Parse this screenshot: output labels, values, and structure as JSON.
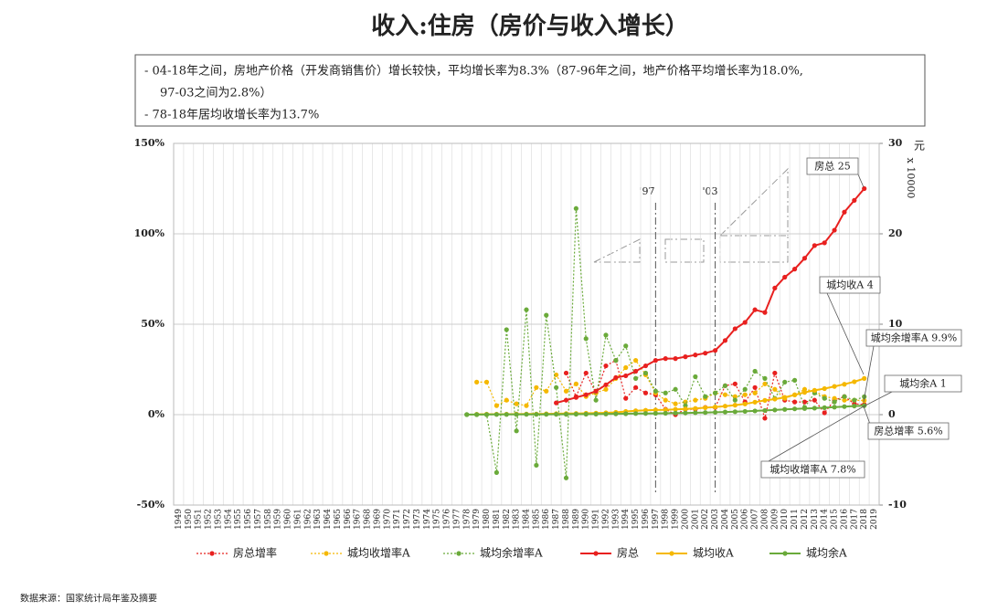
{
  "chart_data": {
    "type": "line",
    "title": "收入:住房（房价与收入增长）",
    "notes": [
      "-  04-18年之间，房地产价格（开发商销售价）增长较快，平均增长率为8.3%（87-96年之间，地产价格平均增长率为18.0%,",
      "97-03之间为2.8%）",
      "- 78-18年居均收增长率为13.7%"
    ],
    "y2_unit": "元",
    "y2_multiplier": "x 10000",
    "source": "数据来源：国家统计局年鉴及摘要",
    "markers": [
      "'97",
      "'03"
    ],
    "annotations": [
      "房总 25",
      "城均收A 4",
      "城均余增率A 9.9%",
      "城均余A 1",
      "房总增率 5.6%",
      "城均收增率A 7.8%"
    ],
    "categories": [
      "1949",
      "1950",
      "1951",
      "1952",
      "1953",
      "1954",
      "1955",
      "1956",
      "1957",
      "1958",
      "1959",
      "1960",
      "1961",
      "1962",
      "1963",
      "1964",
      "1965",
      "1966",
      "1967",
      "1968",
      "1969",
      "1970",
      "1971",
      "1972",
      "1973",
      "1974",
      "1975",
      "1976",
      "1977",
      "1978",
      "1979",
      "1980",
      "1981",
      "1982",
      "1983",
      "1984",
      "1985",
      "1986",
      "1987",
      "1988",
      "1989",
      "1990",
      "1991",
      "1992",
      "1993",
      "1994",
      "1995",
      "1996",
      "1997",
      "1998",
      "1999",
      "2000",
      "2001",
      "2002",
      "2003",
      "2004",
      "2005",
      "2006",
      "2007",
      "2008",
      "2009",
      "2010",
      "2011",
      "2012",
      "2013",
      "2014",
      "2015",
      "2016",
      "2017",
      "2018",
      "2019"
    ],
    "ylim": [
      -50,
      150
    ],
    "yticks": [
      {
        "value": -50,
        "label": "-50%"
      },
      {
        "value": 0,
        "label": "0%"
      },
      {
        "value": 50,
        "label": "50%"
      },
      {
        "value": 100,
        "label": "100%"
      },
      {
        "value": 150,
        "label": "150%"
      }
    ],
    "y2lim": [
      -10,
      30
    ],
    "y2ticks": [
      -10,
      0,
      10,
      20,
      30
    ],
    "grid": true,
    "legend": "bottom",
    "series": [
      {
        "name": "房总增率",
        "color": "#e8201f",
        "style": "dotted",
        "axis": "y",
        "values": [
          null,
          null,
          null,
          null,
          null,
          null,
          null,
          null,
          null,
          null,
          null,
          null,
          null,
          null,
          null,
          null,
          null,
          null,
          null,
          null,
          null,
          null,
          null,
          null,
          null,
          null,
          null,
          null,
          null,
          null,
          null,
          null,
          null,
          null,
          null,
          null,
          null,
          null,
          null,
          23,
          10,
          23,
          12,
          27,
          30,
          9,
          15,
          12,
          11,
          3,
          0,
          3,
          3,
          4,
          4,
          16,
          17,
          7,
          15,
          -2,
          23,
          8,
          7,
          7,
          8,
          1,
          8,
          10,
          6,
          5.6,
          null
        ]
      },
      {
        "name": "城均收增率A",
        "color": "#f5b800",
        "style": "dotted",
        "axis": "y",
        "values": [
          null,
          null,
          null,
          null,
          null,
          null,
          null,
          null,
          null,
          null,
          null,
          null,
          null,
          null,
          null,
          null,
          null,
          null,
          null,
          null,
          null,
          null,
          null,
          null,
          null,
          null,
          null,
          null,
          null,
          null,
          18,
          18,
          5,
          8,
          6,
          5,
          15,
          13,
          22,
          13,
          17,
          10,
          12,
          14,
          20,
          26,
          30,
          22,
          12,
          8,
          6,
          7,
          8,
          9,
          12,
          11,
          10,
          11,
          12,
          17,
          14,
          9,
          11,
          14,
          13,
          10,
          9,
          8,
          8,
          7.8,
          null
        ]
      },
      {
        "name": "城均余增率A",
        "color": "#6aaa3a",
        "style": "dotted",
        "axis": "y",
        "values": [
          null,
          null,
          null,
          null,
          null,
          null,
          null,
          null,
          null,
          null,
          null,
          null,
          null,
          null,
          null,
          null,
          null,
          null,
          null,
          null,
          null,
          null,
          null,
          null,
          null,
          null,
          null,
          null,
          null,
          0,
          0,
          0,
          -32,
          47,
          -9,
          58,
          -28,
          55,
          15,
          -35,
          114,
          42,
          8,
          44,
          30,
          38,
          20,
          23,
          13,
          12,
          14,
          5,
          21,
          10,
          12,
          16,
          8,
          14,
          24,
          20,
          9,
          18,
          19,
          4,
          12,
          9,
          7,
          10,
          8,
          9.9,
          null
        ]
      },
      {
        "name": "房总",
        "color": "#e8201f",
        "style": "solid",
        "axis": "y2",
        "values": [
          null,
          null,
          null,
          null,
          null,
          null,
          null,
          null,
          null,
          null,
          null,
          null,
          null,
          null,
          null,
          null,
          null,
          null,
          null,
          null,
          null,
          null,
          null,
          null,
          null,
          null,
          null,
          null,
          null,
          null,
          null,
          null,
          null,
          null,
          null,
          null,
          null,
          null,
          1.3,
          1.6,
          1.9,
          2.2,
          2.6,
          3.3,
          4.1,
          4.3,
          4.8,
          5.4,
          6.0,
          6.2,
          6.2,
          6.4,
          6.6,
          6.8,
          7.1,
          8.2,
          9.5,
          10.2,
          11.6,
          11.3,
          14.0,
          15.2,
          16.1,
          17.3,
          18.7,
          19.0,
          20.4,
          22.4,
          23.7,
          25.0,
          null
        ]
      },
      {
        "name": "城均收A",
        "color": "#f5b800",
        "style": "solid",
        "axis": "y2",
        "values": [
          null,
          null,
          null,
          null,
          null,
          null,
          null,
          null,
          null,
          null,
          null,
          null,
          null,
          null,
          null,
          null,
          null,
          null,
          null,
          null,
          null,
          null,
          null,
          null,
          null,
          null,
          null,
          null,
          null,
          null,
          0.04,
          0.05,
          0.05,
          0.05,
          0.06,
          0.07,
          0.07,
          0.09,
          0.1,
          0.12,
          0.13,
          0.15,
          0.17,
          0.2,
          0.25,
          0.35,
          0.43,
          0.48,
          0.52,
          0.54,
          0.59,
          0.63,
          0.69,
          0.77,
          0.85,
          0.94,
          1.05,
          1.18,
          1.38,
          1.58,
          1.72,
          1.91,
          2.18,
          2.46,
          2.69,
          2.88,
          3.12,
          3.36,
          3.64,
          4.0,
          null
        ]
      },
      {
        "name": "城均余A",
        "color": "#6aaa3a",
        "style": "solid",
        "axis": "y2",
        "values": [
          null,
          null,
          null,
          null,
          null,
          null,
          null,
          null,
          null,
          null,
          null,
          null,
          null,
          null,
          null,
          null,
          null,
          null,
          null,
          null,
          null,
          null,
          null,
          null,
          null,
          null,
          null,
          null,
          null,
          0.01,
          0.01,
          0.01,
          0.02,
          0.02,
          0.02,
          0.03,
          0.03,
          0.03,
          0.04,
          0.04,
          0.05,
          0.05,
          0.06,
          0.07,
          0.09,
          0.1,
          0.12,
          0.13,
          0.14,
          0.15,
          0.17,
          0.18,
          0.21,
          0.23,
          0.26,
          0.29,
          0.32,
          0.36,
          0.41,
          0.46,
          0.52,
          0.58,
          0.64,
          0.68,
          0.72,
          0.77,
          0.83,
          0.89,
          0.95,
          1.0,
          null
        ]
      }
    ]
  }
}
